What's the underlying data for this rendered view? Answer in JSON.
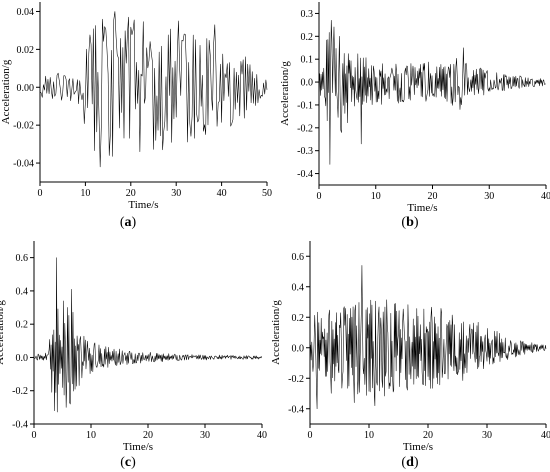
{
  "chart_data": [
    {
      "type": "line",
      "panel_label": "(a)",
      "panel_letter": "a",
      "xlabel": "Time/s",
      "ylabel": "Acceleration/g",
      "xlim": [
        0,
        50
      ],
      "ylim": [
        -0.05,
        0.045
      ],
      "xticks": [
        0,
        10,
        20,
        30,
        40,
        50
      ],
      "yticks": [
        -0.04,
        -0.02,
        0.0,
        0.02,
        0.04
      ],
      "ytick_labels": [
        "-0.04",
        "-0.02",
        "0.00",
        "0.02",
        "0.04"
      ],
      "duration": 50,
      "sample_step": 0.25,
      "envelope": [
        [
          0,
          0.007
        ],
        [
          6,
          0.008
        ],
        [
          9,
          0.012
        ],
        [
          11,
          0.032
        ],
        [
          14,
          0.04
        ],
        [
          18,
          0.038
        ],
        [
          24,
          0.034
        ],
        [
          30,
          0.03
        ],
        [
          36,
          0.028
        ],
        [
          42,
          0.024
        ],
        [
          46,
          0.015
        ],
        [
          49,
          0.008
        ],
        [
          50,
          0.003
        ]
      ],
      "peaks": [
        [
          13.3,
          -0.042
        ],
        [
          16.4,
          0.04
        ],
        [
          15.2,
          -0.036
        ],
        [
          22,
          -0.034
        ],
        [
          19.5,
          0.037
        ],
        [
          30.5,
          0.035
        ],
        [
          27,
          -0.033
        ],
        [
          38.5,
          0.033
        ]
      ],
      "seed": 11
    },
    {
      "type": "line",
      "panel_label": "(b)",
      "panel_letter": "b",
      "xlabel": "Time/s",
      "ylabel": "Acceleration/g",
      "xlim": [
        0,
        40
      ],
      "ylim": [
        -0.45,
        0.35
      ],
      "xticks": [
        0,
        10,
        20,
        30,
        40
      ],
      "yticks": [
        -0.4,
        -0.3,
        -0.2,
        -0.1,
        0.0,
        0.1,
        0.2,
        0.3
      ],
      "ytick_labels": [
        "-0.4",
        "-0.3",
        "-0.2",
        "-0.1",
        "0.0",
        "0.1",
        "0.2",
        "0.3"
      ],
      "duration": 40,
      "sample_step": 0.12,
      "envelope": [
        [
          0,
          0.04
        ],
        [
          1,
          0.2
        ],
        [
          2,
          0.26
        ],
        [
          4,
          0.22
        ],
        [
          6,
          0.14
        ],
        [
          10,
          0.1
        ],
        [
          16,
          0.09
        ],
        [
          22,
          0.1
        ],
        [
          25,
          0.12
        ],
        [
          27,
          0.07
        ],
        [
          32,
          0.04
        ],
        [
          37,
          0.025
        ],
        [
          40,
          0.015
        ]
      ],
      "peaks": [
        [
          1.9,
          -0.36
        ],
        [
          2.2,
          0.27
        ],
        [
          3.6,
          0.2
        ],
        [
          7.5,
          -0.27
        ],
        [
          25.5,
          0.15
        ],
        [
          24.8,
          -0.12
        ]
      ],
      "seed": 23
    },
    {
      "type": "line",
      "panel_label": "(c)",
      "panel_letter": "c",
      "xlabel": "Time/s",
      "ylabel": "Acceleration/g",
      "xlim": [
        0,
        40
      ],
      "ylim": [
        -0.4,
        0.7
      ],
      "xticks": [
        0,
        10,
        20,
        30,
        40
      ],
      "yticks": [
        -0.4,
        -0.2,
        0.0,
        0.2,
        0.4,
        0.6
      ],
      "ytick_labels": [
        "-0.4",
        "-0.2",
        "0.0",
        "0.2",
        "0.4",
        "0.6"
      ],
      "duration": 40,
      "sample_step": 0.12,
      "envelope": [
        [
          0,
          0.02
        ],
        [
          2.5,
          0.04
        ],
        [
          3.5,
          0.4
        ],
        [
          5,
          0.35
        ],
        [
          7,
          0.28
        ],
        [
          9,
          0.12
        ],
        [
          12,
          0.07
        ],
        [
          17,
          0.04
        ],
        [
          25,
          0.02
        ],
        [
          40,
          0.01
        ]
      ],
      "peaks": [
        [
          4,
          0.6
        ],
        [
          3.6,
          -0.32
        ],
        [
          6.6,
          0.41
        ],
        [
          5.6,
          -0.3
        ],
        [
          5.2,
          0.34
        ]
      ],
      "seed": 37
    },
    {
      "type": "line",
      "panel_label": "(d)",
      "panel_letter": "d",
      "xlabel": "Time/s",
      "ylabel": "Acceleration/g",
      "xlim": [
        0,
        40
      ],
      "ylim": [
        -0.5,
        0.7
      ],
      "xticks": [
        0,
        10,
        20,
        30,
        40
      ],
      "yticks": [
        -0.4,
        -0.2,
        0.0,
        0.2,
        0.4,
        0.6
      ],
      "ytick_labels": [
        "-0.4",
        "-0.2",
        "0.0",
        "0.2",
        "0.4",
        "0.6"
      ],
      "duration": 40,
      "sample_step": 0.1,
      "envelope": [
        [
          0,
          0.06
        ],
        [
          1,
          0.3
        ],
        [
          5,
          0.3
        ],
        [
          12,
          0.32
        ],
        [
          20,
          0.28
        ],
        [
          26,
          0.22
        ],
        [
          30,
          0.14
        ],
        [
          34,
          0.07
        ],
        [
          38,
          0.03
        ],
        [
          40,
          0.02
        ]
      ],
      "peaks": [
        [
          8.8,
          0.54
        ],
        [
          1.2,
          -0.4
        ],
        [
          7.5,
          -0.36
        ],
        [
          11,
          -0.38
        ]
      ],
      "seed": 53
    }
  ]
}
